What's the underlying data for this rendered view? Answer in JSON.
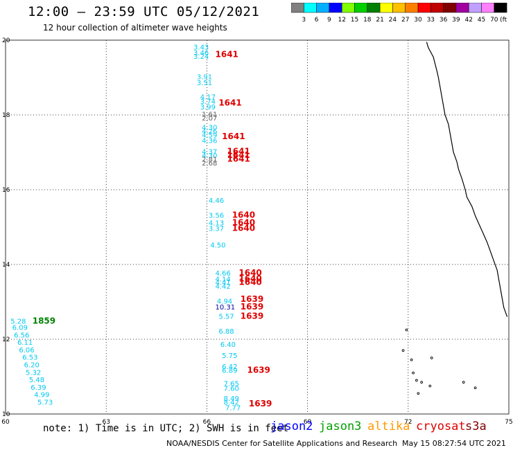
{
  "header": {
    "title": "12:00 – 23:59 UTC 05/12/2021",
    "subtitle": "12 hour collection of altimeter wave heights"
  },
  "colorbar": {
    "ticks": [
      "3",
      "6",
      "9",
      "12",
      "15",
      "18",
      "21",
      "24",
      "27",
      "30",
      "33",
      "36",
      "39",
      "42",
      "45",
      "70"
    ],
    "unit": "(ft)",
    "colors": [
      "#808080",
      "#00ffff",
      "#00b0ff",
      "#0000ff",
      "#80ff00",
      "#00d000",
      "#008000",
      "#ffff00",
      "#ffc000",
      "#ff8000",
      "#ff0000",
      "#c00000",
      "#800000",
      "#a000a0",
      "#c0a0ff",
      "#ff80ff",
      "#000000"
    ]
  },
  "axes": {
    "x_ticks": [
      "60",
      "63",
      "66",
      "69",
      "72",
      "75"
    ],
    "y_ticks": [
      "10",
      "12",
      "14",
      "16",
      "18",
      "20"
    ],
    "x_range": [
      60,
      75
    ],
    "y_range": [
      10,
      20
    ]
  },
  "colors": {
    "cyan": "#00c8f0",
    "red": "#e00000",
    "green": "#008000",
    "navy": "#0000a0",
    "gray": "#606060",
    "jason2": "#0000ff",
    "jason3": "#00a000",
    "altika": "#ff9900",
    "cryosat": "#e00000",
    "s3a": "#800000"
  },
  "swh_labels": [
    {
      "lon": 65.6,
      "lat": 19.75,
      "text": "3.43",
      "color": "cyan"
    },
    {
      "lon": 65.6,
      "lat": 19.6,
      "text": "3.46",
      "color": "cyan"
    },
    {
      "lon": 65.6,
      "lat": 19.5,
      "text": "3.24",
      "color": "cyan"
    },
    {
      "lon": 65.7,
      "lat": 18.95,
      "text": "3.91",
      "color": "cyan"
    },
    {
      "lon": 65.7,
      "lat": 18.8,
      "text": "3.51",
      "color": "cyan"
    },
    {
      "lon": 65.8,
      "lat": 18.42,
      "text": "4.17",
      "color": "cyan"
    },
    {
      "lon": 65.8,
      "lat": 18.3,
      "text": "3.74",
      "color": "cyan"
    },
    {
      "lon": 65.8,
      "lat": 18.15,
      "text": "3.99",
      "color": "cyan"
    },
    {
      "lon": 65.85,
      "lat": 17.95,
      "text": "1.61",
      "color": "gray"
    },
    {
      "lon": 65.85,
      "lat": 17.85,
      "text": "2.07",
      "color": "gray"
    },
    {
      "lon": 65.85,
      "lat": 17.6,
      "text": "4.30",
      "color": "cyan"
    },
    {
      "lon": 65.85,
      "lat": 17.5,
      "text": "4.26",
      "color": "cyan"
    },
    {
      "lon": 65.85,
      "lat": 17.4,
      "text": "4.59",
      "color": "cyan"
    },
    {
      "lon": 65.85,
      "lat": 17.25,
      "text": "4.36",
      "color": "cyan"
    },
    {
      "lon": 65.85,
      "lat": 16.95,
      "text": "4.37",
      "color": "cyan"
    },
    {
      "lon": 65.85,
      "lat": 16.85,
      "text": "4.30",
      "color": "cyan"
    },
    {
      "lon": 65.85,
      "lat": 16.75,
      "text": "2.81",
      "color": "gray"
    },
    {
      "lon": 65.85,
      "lat": 16.65,
      "text": "2.68",
      "color": "gray"
    },
    {
      "lon": 66.05,
      "lat": 15.65,
      "text": "4.46",
      "color": "cyan"
    },
    {
      "lon": 66.05,
      "lat": 15.25,
      "text": "3.56",
      "color": "cyan"
    },
    {
      "lon": 66.05,
      "lat": 15.05,
      "text": "4.13",
      "color": "cyan"
    },
    {
      "lon": 66.05,
      "lat": 14.9,
      "text": "3.37",
      "color": "cyan"
    },
    {
      "lon": 66.1,
      "lat": 14.45,
      "text": "4.50",
      "color": "cyan"
    },
    {
      "lon": 66.25,
      "lat": 13.7,
      "text": "4.66",
      "color": "cyan"
    },
    {
      "lon": 66.25,
      "lat": 13.55,
      "text": "4.14",
      "color": "cyan"
    },
    {
      "lon": 66.25,
      "lat": 13.45,
      "text": "4.41",
      "color": "cyan"
    },
    {
      "lon": 66.25,
      "lat": 13.35,
      "text": "4.42",
      "color": "cyan"
    },
    {
      "lon": 66.3,
      "lat": 12.95,
      "text": "4.94",
      "color": "cyan"
    },
    {
      "lon": 66.25,
      "lat": 12.8,
      "text": "10.31",
      "color": "navy"
    },
    {
      "lon": 66.35,
      "lat": 12.55,
      "text": "5.57",
      "color": "cyan"
    },
    {
      "lon": 66.35,
      "lat": 12.15,
      "text": "6.88",
      "color": "cyan"
    },
    {
      "lon": 66.4,
      "lat": 11.8,
      "text": "6.40",
      "color": "cyan"
    },
    {
      "lon": 66.45,
      "lat": 11.5,
      "text": "5.75",
      "color": "cyan"
    },
    {
      "lon": 66.45,
      "lat": 11.2,
      "text": "6.42",
      "color": "cyan"
    },
    {
      "lon": 66.45,
      "lat": 11.1,
      "text": "6.89",
      "color": "cyan"
    },
    {
      "lon": 66.5,
      "lat": 10.75,
      "text": "7.65",
      "color": "cyan"
    },
    {
      "lon": 66.5,
      "lat": 10.62,
      "text": "7.60",
      "color": "cyan"
    },
    {
      "lon": 66.5,
      "lat": 10.35,
      "text": "8.49",
      "color": "cyan"
    },
    {
      "lon": 66.5,
      "lat": 10.25,
      "text": "8.42",
      "color": "cyan"
    },
    {
      "lon": 66.55,
      "lat": 10.1,
      "text": "7.77",
      "color": "cyan"
    },
    {
      "lon": 60.15,
      "lat": 12.42,
      "text": "5.28",
      "color": "cyan"
    },
    {
      "lon": 60.2,
      "lat": 12.25,
      "text": "6.09",
      "color": "cyan"
    },
    {
      "lon": 60.25,
      "lat": 12.05,
      "text": "6.56",
      "color": "cyan"
    },
    {
      "lon": 60.35,
      "lat": 11.85,
      "text": "6.11",
      "color": "cyan"
    },
    {
      "lon": 60.4,
      "lat": 11.65,
      "text": "6.06",
      "color": "cyan"
    },
    {
      "lon": 60.5,
      "lat": 11.45,
      "text": "6.53",
      "color": "cyan"
    },
    {
      "lon": 60.55,
      "lat": 11.25,
      "text": "6.20",
      "color": "cyan"
    },
    {
      "lon": 60.6,
      "lat": 11.05,
      "text": "5.32",
      "color": "cyan"
    },
    {
      "lon": 60.7,
      "lat": 10.85,
      "text": "5.48",
      "color": "cyan"
    },
    {
      "lon": 60.75,
      "lat": 10.65,
      "text": "6.39",
      "color": "cyan"
    },
    {
      "lon": 60.85,
      "lat": 10.45,
      "text": "4.99",
      "color": "cyan"
    },
    {
      "lon": 60.95,
      "lat": 10.25,
      "text": "5.73",
      "color": "cyan"
    }
  ],
  "pass_labels": [
    {
      "lon": 66.25,
      "lat": 19.55,
      "text": "1641",
      "color": "red"
    },
    {
      "lon": 66.35,
      "lat": 18.25,
      "text": "1641",
      "color": "red"
    },
    {
      "lon": 66.45,
      "lat": 17.35,
      "text": "1641",
      "color": "red"
    },
    {
      "lon": 66.6,
      "lat": 16.95,
      "text": "1641",
      "color": "red"
    },
    {
      "lon": 66.6,
      "lat": 16.85,
      "text": "1641",
      "color": "red"
    },
    {
      "lon": 66.6,
      "lat": 16.75,
      "text": "1641",
      "color": "red"
    },
    {
      "lon": 66.75,
      "lat": 15.25,
      "text": "1640",
      "color": "red"
    },
    {
      "lon": 66.75,
      "lat": 15.05,
      "text": "1640",
      "color": "red"
    },
    {
      "lon": 66.75,
      "lat": 14.9,
      "text": "1640",
      "color": "red"
    },
    {
      "lon": 66.95,
      "lat": 13.7,
      "text": "1640",
      "color": "red"
    },
    {
      "lon": 66.95,
      "lat": 13.55,
      "text": "1640",
      "color": "red"
    },
    {
      "lon": 66.95,
      "lat": 13.45,
      "text": "1640",
      "color": "red"
    },
    {
      "lon": 67.0,
      "lat": 13.0,
      "text": "1639",
      "color": "red"
    },
    {
      "lon": 67.0,
      "lat": 12.8,
      "text": "1639",
      "color": "red"
    },
    {
      "lon": 67.0,
      "lat": 12.55,
      "text": "1639",
      "color": "red"
    },
    {
      "lon": 67.2,
      "lat": 11.1,
      "text": "1639",
      "color": "red"
    },
    {
      "lon": 67.25,
      "lat": 10.2,
      "text": "1639",
      "color": "red"
    },
    {
      "lon": 60.8,
      "lat": 12.42,
      "text": "1859",
      "color": "green"
    }
  ],
  "footer": {
    "note": "note: 1) Time is in UTC; 2) SWH is in feet",
    "satellites": [
      {
        "name": "jason2",
        "color": "jason2"
      },
      {
        "name": "jason3",
        "color": "jason3"
      },
      {
        "name": "altika",
        "color": "altika"
      },
      {
        "name": "cryosat",
        "color": "cryosat"
      },
      {
        "name": "s3a",
        "color": "s3a"
      }
    ],
    "credit": "NOAA/NESDIS Center for Satellite Applications and Research",
    "timestamp": "May 15 08:27:54 UTC 2021"
  }
}
